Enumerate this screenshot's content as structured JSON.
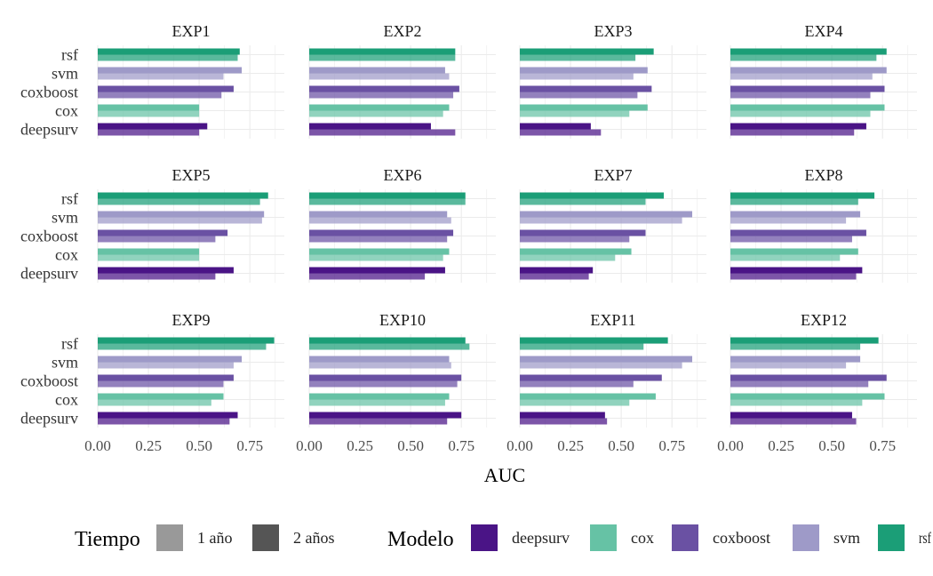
{
  "chart_data": {
    "type": "bar",
    "orientation": "horizontal",
    "xlabel": "AUC",
    "xlim": [
      0,
      0.92
    ],
    "xticks": [
      "0.00",
      "0.25",
      "0.50",
      "0.75"
    ],
    "xtick_values": [
      0,
      0.25,
      0.5,
      0.75
    ],
    "grid": true,
    "models": [
      "rsf",
      "svm",
      "coxboost",
      "cox",
      "deepsurv"
    ],
    "model_colors": {
      "deepsurv": "#4a1486",
      "cox": "#66c2a5",
      "coxboost": "#6a51a3",
      "svm": "#9e9ac8",
      "rsf": "#1b9e77"
    },
    "legend": {
      "position": "bottom",
      "tiempo_title": "Tiempo",
      "tiempo_items": [
        {
          "label": "1 año",
          "color": "#999999"
        },
        {
          "label": "2 años",
          "color": "#555555"
        }
      ],
      "modelo_title": "Modelo",
      "modelo_items": [
        {
          "label": "deepsurv",
          "key": "deepsurv"
        },
        {
          "label": "cox",
          "key": "cox"
        },
        {
          "label": "coxboost",
          "key": "coxboost"
        },
        {
          "label": "svm",
          "key": "svm"
        },
        {
          "label": "rsf",
          "key": "rsf"
        }
      ]
    },
    "panels": [
      {
        "title": "EXP1",
        "values": {
          "rsf": {
            "y1": 0.69,
            "y2": 0.7
          },
          "svm": {
            "y1": 0.62,
            "y2": 0.71
          },
          "coxboost": {
            "y1": 0.61,
            "y2": 0.67
          },
          "cox": {
            "y1": 0.5,
            "y2": 0.5
          },
          "deepsurv": {
            "y1": 0.5,
            "y2": 0.54
          }
        }
      },
      {
        "title": "EXP2",
        "values": {
          "rsf": {
            "y1": 0.72,
            "y2": 0.72
          },
          "svm": {
            "y1": 0.69,
            "y2": 0.67
          },
          "coxboost": {
            "y1": 0.71,
            "y2": 0.74
          },
          "cox": {
            "y1": 0.66,
            "y2": 0.69
          },
          "deepsurv": {
            "y1": 0.72,
            "y2": 0.6
          }
        }
      },
      {
        "title": "EXP3",
        "values": {
          "rsf": {
            "y1": 0.57,
            "y2": 0.66
          },
          "svm": {
            "y1": 0.56,
            "y2": 0.63
          },
          "coxboost": {
            "y1": 0.58,
            "y2": 0.65
          },
          "cox": {
            "y1": 0.54,
            "y2": 0.63
          },
          "deepsurv": {
            "y1": 0.4,
            "y2": 0.35
          }
        }
      },
      {
        "title": "EXP4",
        "values": {
          "rsf": {
            "y1": 0.72,
            "y2": 0.77
          },
          "svm": {
            "y1": 0.7,
            "y2": 0.77
          },
          "coxboost": {
            "y1": 0.69,
            "y2": 0.76
          },
          "cox": {
            "y1": 0.69,
            "y2": 0.76
          },
          "deepsurv": {
            "y1": 0.61,
            "y2": 0.67
          }
        }
      },
      {
        "title": "EXP5",
        "values": {
          "rsf": {
            "y1": 0.8,
            "y2": 0.84
          },
          "svm": {
            "y1": 0.81,
            "y2": 0.82
          },
          "coxboost": {
            "y1": 0.58,
            "y2": 0.64
          },
          "cox": {
            "y1": 0.5,
            "y2": 0.5
          },
          "deepsurv": {
            "y1": 0.58,
            "y2": 0.67
          }
        }
      },
      {
        "title": "EXP6",
        "values": {
          "rsf": {
            "y1": 0.77,
            "y2": 0.77
          },
          "svm": {
            "y1": 0.7,
            "y2": 0.68
          },
          "coxboost": {
            "y1": 0.68,
            "y2": 0.71
          },
          "cox": {
            "y1": 0.66,
            "y2": 0.69
          },
          "deepsurv": {
            "y1": 0.57,
            "y2": 0.67
          }
        }
      },
      {
        "title": "EXP7",
        "values": {
          "rsf": {
            "y1": 0.62,
            "y2": 0.71
          },
          "svm": {
            "y1": 0.8,
            "y2": 0.85
          },
          "coxboost": {
            "y1": 0.54,
            "y2": 0.62
          },
          "cox": {
            "y1": 0.47,
            "y2": 0.55
          },
          "deepsurv": {
            "y1": 0.34,
            "y2": 0.36
          }
        }
      },
      {
        "title": "EXP8",
        "values": {
          "rsf": {
            "y1": 0.63,
            "y2": 0.71
          },
          "svm": {
            "y1": 0.57,
            "y2": 0.64
          },
          "coxboost": {
            "y1": 0.6,
            "y2": 0.67
          },
          "cox": {
            "y1": 0.54,
            "y2": 0.63
          },
          "deepsurv": {
            "y1": 0.62,
            "y2": 0.65
          }
        }
      },
      {
        "title": "EXP9",
        "values": {
          "rsf": {
            "y1": 0.83,
            "y2": 0.87
          },
          "svm": {
            "y1": 0.67,
            "y2": 0.71
          },
          "coxboost": {
            "y1": 0.62,
            "y2": 0.67
          },
          "cox": {
            "y1": 0.56,
            "y2": 0.62
          },
          "deepsurv": {
            "y1": 0.65,
            "y2": 0.69
          }
        }
      },
      {
        "title": "EXP10",
        "values": {
          "rsf": {
            "y1": 0.79,
            "y2": 0.77
          },
          "svm": {
            "y1": 0.7,
            "y2": 0.69
          },
          "coxboost": {
            "y1": 0.73,
            "y2": 0.75
          },
          "cox": {
            "y1": 0.67,
            "y2": 0.69
          },
          "deepsurv": {
            "y1": 0.68,
            "y2": 0.75
          }
        }
      },
      {
        "title": "EXP11",
        "values": {
          "rsf": {
            "y1": 0.61,
            "y2": 0.73
          },
          "svm": {
            "y1": 0.8,
            "y2": 0.85
          },
          "coxboost": {
            "y1": 0.56,
            "y2": 0.7
          },
          "cox": {
            "y1": 0.54,
            "y2": 0.67
          },
          "deepsurv": {
            "y1": 0.43,
            "y2": 0.42
          }
        }
      },
      {
        "title": "EXP12",
        "values": {
          "rsf": {
            "y1": 0.64,
            "y2": 0.73
          },
          "svm": {
            "y1": 0.57,
            "y2": 0.64
          },
          "coxboost": {
            "y1": 0.68,
            "y2": 0.77
          },
          "cox": {
            "y1": 0.65,
            "y2": 0.76
          },
          "deepsurv": {
            "y1": 0.62,
            "y2": 0.6
          }
        }
      }
    ]
  }
}
